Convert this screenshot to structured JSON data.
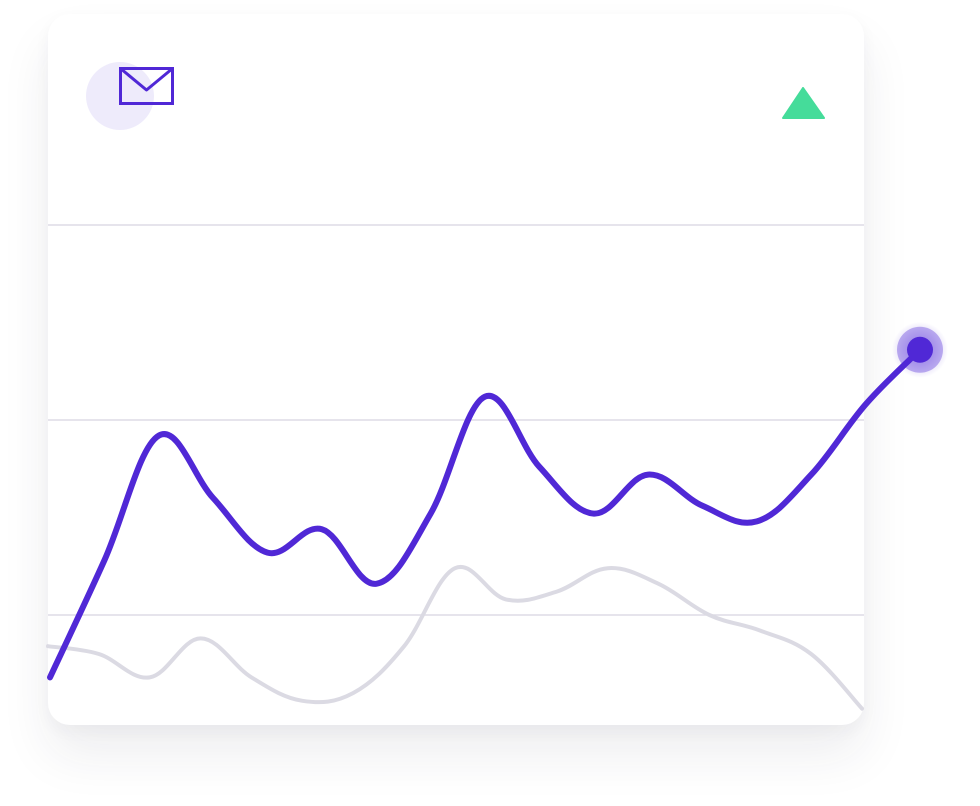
{
  "colors": {
    "primary": "#5028D6",
    "primary_light": "#EEEBFB",
    "secondary": "#DBDAE3",
    "grid": "#DDDCE5",
    "up": "#45DC9A"
  },
  "icons": {
    "mail": "mail-icon",
    "trend": "trend-up-icon"
  },
  "chart_data": {
    "type": "line",
    "title": "",
    "xlabel": "",
    "ylabel": "",
    "x": [
      0,
      1,
      2,
      3,
      4,
      5,
      6,
      7,
      8,
      9,
      10,
      11,
      12,
      13,
      14,
      15,
      16
    ],
    "ylim": [
      0,
      100
    ],
    "gridlines": [
      80,
      55,
      30
    ],
    "grid": true,
    "legend": "none",
    "series": [
      {
        "role": "primary",
        "values": [
          22,
          37,
          53,
          45,
          38,
          41,
          34,
          43,
          58,
          49,
          43,
          48,
          44,
          42,
          48,
          57,
          64
        ],
        "end_marker": true
      },
      {
        "role": "secondary",
        "values": [
          26,
          25,
          22,
          27,
          22,
          19,
          20,
          26,
          36,
          32,
          33,
          36,
          34,
          30,
          28,
          25,
          18
        ]
      }
    ]
  }
}
